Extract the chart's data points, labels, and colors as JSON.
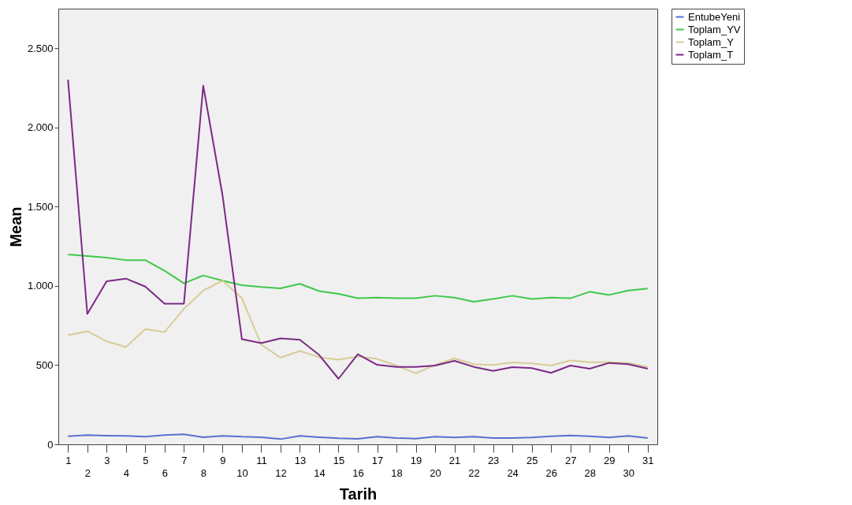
{
  "chart_data": {
    "type": "line",
    "xlabel": "Tarih",
    "ylabel": "Mean",
    "categories": [
      "1",
      "2",
      "3",
      "4",
      "5",
      "6",
      "7",
      "8",
      "9",
      "10",
      "11",
      "12",
      "13",
      "14",
      "15",
      "16",
      "17",
      "18",
      "19",
      "20",
      "21",
      "22",
      "23",
      "24",
      "25",
      "26",
      "27",
      "28",
      "29",
      "30",
      "31"
    ],
    "series": [
      {
        "name": "EntubeYeni",
        "color": "#5a6fd0",
        "values": [
          51,
          58,
          55,
          53,
          48,
          58,
          63,
          45,
          54,
          48,
          45,
          33,
          53,
          45,
          38,
          35,
          48,
          40,
          36,
          48,
          44,
          48,
          40,
          40,
          44,
          51,
          56,
          51,
          44,
          53,
          40
        ]
      },
      {
        "name": "Toplam_YV",
        "color": "#3ec84a",
        "values": [
          1199,
          1188,
          1179,
          1163,
          1163,
          1096,
          1016,
          1066,
          1033,
          1005,
          993,
          985,
          1013,
          967,
          950,
          922,
          926,
          922,
          922,
          938,
          926,
          900,
          917,
          938,
          918,
          926,
          922,
          963,
          943,
          971,
          983
        ]
      },
      {
        "name": "Toplam_Y",
        "color": "#d8cc96",
        "values": [
          689,
          714,
          650,
          614,
          727,
          709,
          855,
          971,
          1033,
          922,
          630,
          547,
          589,
          550,
          535,
          555,
          539,
          497,
          448,
          501,
          542,
          506,
          501,
          517,
          511,
          497,
          530,
          519,
          518,
          514,
          489
        ]
      },
      {
        "name": "Toplam_T",
        "color": "#7b2a85",
        "values": [
          2302,
          823,
          1029,
          1046,
          996,
          888,
          888,
          2264,
          1570,
          664,
          639,
          669,
          660,
          564,
          414,
          569,
          502,
          489,
          489,
          497,
          527,
          489,
          464,
          487,
          481,
          451,
          497,
          477,
          514,
          506,
          477
        ]
      }
    ],
    "ylim": [
      0,
      2750
    ],
    "yticks": [
      0,
      500,
      {
        "value": 1000,
        "label": "1.000"
      },
      {
        "value": 1500,
        "label": "1.500"
      },
      {
        "value": 2000,
        "label": "2.000"
      },
      {
        "value": 2500,
        "label": "2.500"
      }
    ],
    "legend": "right",
    "marker": "none",
    "line_style": "solid",
    "grid": false
  }
}
